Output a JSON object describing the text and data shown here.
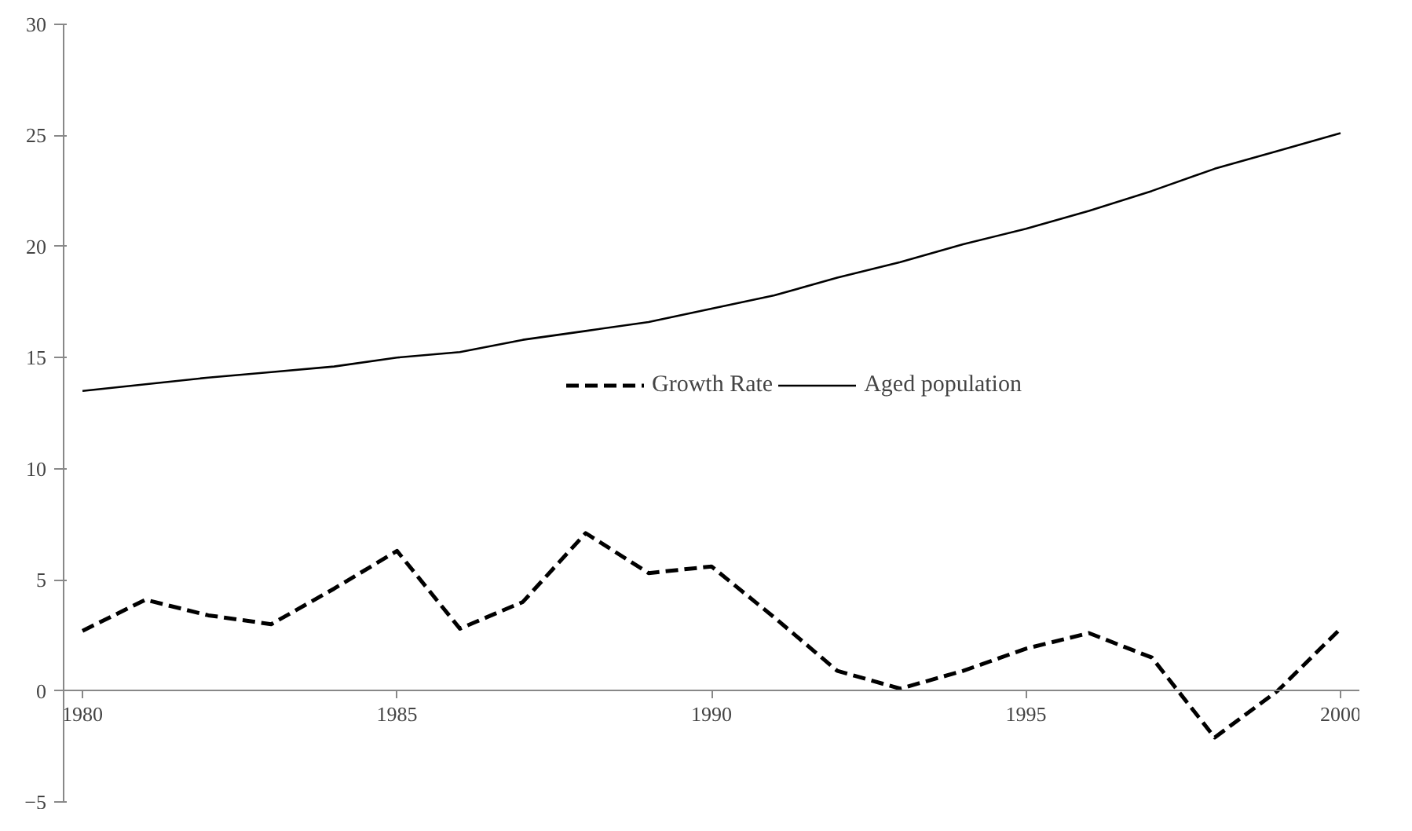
{
  "chart_data": {
    "type": "line",
    "x": [
      1980,
      1981,
      1982,
      1983,
      1984,
      1985,
      1986,
      1987,
      1988,
      1989,
      1990,
      1991,
      1992,
      1993,
      1994,
      1995,
      1996,
      1997,
      1998,
      1999,
      2000
    ],
    "series": [
      {
        "name": "Growth Rate",
        "color": "#000000",
        "line_style": "dashed",
        "values": [
          2.7,
          4.1,
          3.4,
          3.0,
          4.6,
          6.3,
          2.8,
          4.0,
          7.1,
          5.3,
          5.6,
          3.3,
          0.9,
          0.1,
          0.9,
          1.9,
          2.6,
          1.5,
          -2.1,
          0.0,
          2.8
        ]
      },
      {
        "name": "Aged population",
        "color": "#000000",
        "line_style": "solid",
        "values": [
          13.5,
          13.8,
          14.1,
          14.35,
          14.6,
          15.0,
          15.25,
          15.8,
          16.2,
          16.6,
          17.2,
          17.8,
          18.6,
          19.3,
          20.1,
          20.8,
          21.6,
          22.5,
          23.5,
          24.3,
          25.1
        ]
      }
    ],
    "xlim": [
      1979.7,
      2000.3
    ],
    "xticks": [
      1980,
      1985,
      1990,
      1995,
      2000
    ],
    "ylim": [
      -5,
      30
    ],
    "yticks": [
      -5,
      0,
      5,
      10,
      15,
      20,
      25,
      30
    ],
    "grid": false,
    "legend": "right",
    "marker": "none"
  }
}
